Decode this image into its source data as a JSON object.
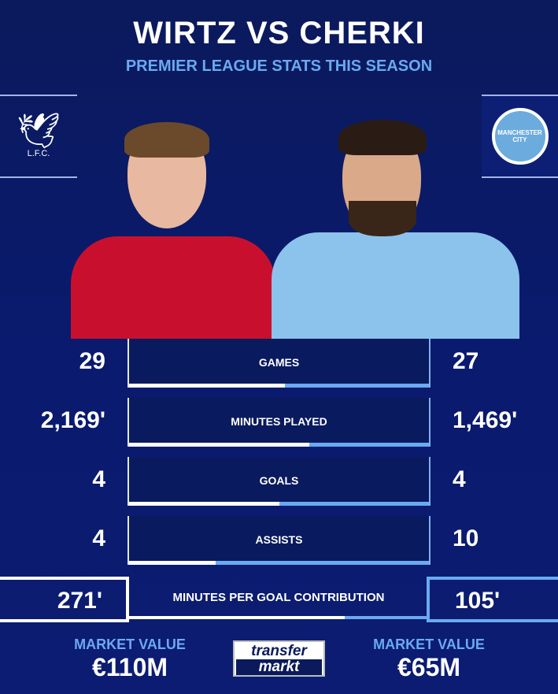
{
  "header": {
    "title": "WIRTZ VS CHERKI",
    "subtitle": "PREMIER LEAGUE STATS THIS SEASON"
  },
  "left": {
    "club_crest": "Liverpool FC crest",
    "crest_text": "L.F.C.",
    "color": "#c8102e"
  },
  "right": {
    "club_crest": "Manchester City crest",
    "crest_text": "MANCHESTER CITY",
    "color": "#6cabdd"
  },
  "stats": [
    {
      "label": "GAMES",
      "left": "29",
      "right": "27",
      "left_share": 0.52
    },
    {
      "label": "MINUTES PLAYED",
      "left": "2,169'",
      "right": "1,469'",
      "left_share": 0.6
    },
    {
      "label": "GOALS",
      "left": "4",
      "right": "4",
      "left_share": 0.5
    },
    {
      "label": "ASSISTS",
      "left": "4",
      "right": "10",
      "left_share": 0.29
    }
  ],
  "highlight": {
    "label": "MINUTES PER GOAL CONTRIBUTION",
    "left": "271'",
    "right": "105'",
    "left_share": 0.72
  },
  "market": {
    "left_label": "MARKET VALUE",
    "left_value": "€110M",
    "right_label": "MARKET VALUE",
    "right_value": "€65M"
  },
  "logo": {
    "line1": "transfer",
    "line2": "markt"
  }
}
